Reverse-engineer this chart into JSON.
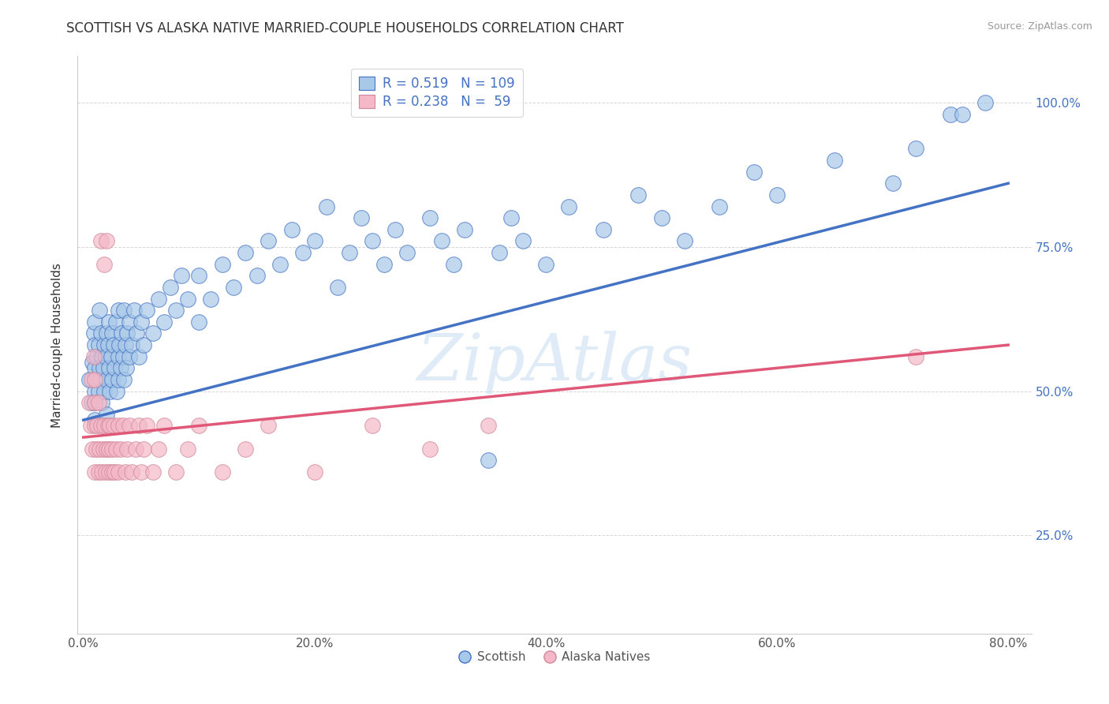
{
  "title": "SCOTTISH VS ALASKA NATIVE MARRIED-COUPLE HOUSEHOLDS CORRELATION CHART",
  "source": "Source: ZipAtlas.com",
  "ylabel": "Married-couple Households",
  "xlim": [
    -0.005,
    0.82
  ],
  "ylim": [
    0.08,
    1.08
  ],
  "xticks": [
    0.0,
    0.2,
    0.4,
    0.6,
    0.8
  ],
  "xticklabels": [
    "0.0%",
    "20.0%",
    "40.0%",
    "60.0%",
    "80.0%"
  ],
  "yticks": [
    0.25,
    0.5,
    0.75,
    1.0
  ],
  "yticklabels": [
    "25.0%",
    "50.0%",
    "75.0%",
    "100.0%"
  ],
  "scottish_color": "#a8c8e8",
  "alaska_color": "#f4b8c8",
  "scottish_line_color": "#4472c4",
  "alaska_line_color": "#e05878",
  "scottish_edge_color": "#6699cc",
  "alaska_edge_color": "#d08898",
  "watermark": "ZipAtlas",
  "legend_R_scottish": "0.519",
  "legend_N_scottish": "109",
  "legend_R_alaska": "0.238",
  "legend_N_alaska": "59",
  "scottish_scatter": [
    [
      0.005,
      0.52
    ],
    [
      0.007,
      0.48
    ],
    [
      0.008,
      0.55
    ],
    [
      0.009,
      0.6
    ],
    [
      0.01,
      0.58
    ],
    [
      0.01,
      0.5
    ],
    [
      0.01,
      0.45
    ],
    [
      0.01,
      0.62
    ],
    [
      0.01,
      0.54
    ],
    [
      0.01,
      0.48
    ],
    [
      0.011,
      0.56
    ],
    [
      0.012,
      0.52
    ],
    [
      0.013,
      0.58
    ],
    [
      0.013,
      0.5
    ],
    [
      0.014,
      0.64
    ],
    [
      0.014,
      0.54
    ],
    [
      0.015,
      0.6
    ],
    [
      0.015,
      0.52
    ],
    [
      0.016,
      0.56
    ],
    [
      0.016,
      0.48
    ],
    [
      0.017,
      0.54
    ],
    [
      0.018,
      0.58
    ],
    [
      0.018,
      0.5
    ],
    [
      0.019,
      0.56
    ],
    [
      0.02,
      0.52
    ],
    [
      0.02,
      0.6
    ],
    [
      0.02,
      0.46
    ],
    [
      0.021,
      0.58
    ],
    [
      0.022,
      0.54
    ],
    [
      0.022,
      0.62
    ],
    [
      0.023,
      0.5
    ],
    [
      0.024,
      0.56
    ],
    [
      0.025,
      0.52
    ],
    [
      0.025,
      0.6
    ],
    [
      0.026,
      0.58
    ],
    [
      0.027,
      0.54
    ],
    [
      0.028,
      0.62
    ],
    [
      0.029,
      0.5
    ],
    [
      0.03,
      0.56
    ],
    [
      0.03,
      0.52
    ],
    [
      0.03,
      0.64
    ],
    [
      0.031,
      0.58
    ],
    [
      0.032,
      0.54
    ],
    [
      0.033,
      0.6
    ],
    [
      0.034,
      0.56
    ],
    [
      0.035,
      0.52
    ],
    [
      0.035,
      0.64
    ],
    [
      0.036,
      0.58
    ],
    [
      0.037,
      0.54
    ],
    [
      0.038,
      0.6
    ],
    [
      0.04,
      0.62
    ],
    [
      0.04,
      0.56
    ],
    [
      0.042,
      0.58
    ],
    [
      0.044,
      0.64
    ],
    [
      0.046,
      0.6
    ],
    [
      0.048,
      0.56
    ],
    [
      0.05,
      0.62
    ],
    [
      0.052,
      0.58
    ],
    [
      0.055,
      0.64
    ],
    [
      0.06,
      0.6
    ],
    [
      0.065,
      0.66
    ],
    [
      0.07,
      0.62
    ],
    [
      0.075,
      0.68
    ],
    [
      0.08,
      0.64
    ],
    [
      0.085,
      0.7
    ],
    [
      0.09,
      0.66
    ],
    [
      0.1,
      0.62
    ],
    [
      0.1,
      0.7
    ],
    [
      0.11,
      0.66
    ],
    [
      0.12,
      0.72
    ],
    [
      0.13,
      0.68
    ],
    [
      0.14,
      0.74
    ],
    [
      0.15,
      0.7
    ],
    [
      0.16,
      0.76
    ],
    [
      0.17,
      0.72
    ],
    [
      0.18,
      0.78
    ],
    [
      0.19,
      0.74
    ],
    [
      0.2,
      0.76
    ],
    [
      0.21,
      0.82
    ],
    [
      0.22,
      0.68
    ],
    [
      0.23,
      0.74
    ],
    [
      0.24,
      0.8
    ],
    [
      0.25,
      0.76
    ],
    [
      0.26,
      0.72
    ],
    [
      0.27,
      0.78
    ],
    [
      0.28,
      0.74
    ],
    [
      0.3,
      0.8
    ],
    [
      0.31,
      0.76
    ],
    [
      0.32,
      0.72
    ],
    [
      0.33,
      0.78
    ],
    [
      0.35,
      0.38
    ],
    [
      0.36,
      0.74
    ],
    [
      0.37,
      0.8
    ],
    [
      0.38,
      0.76
    ],
    [
      0.4,
      0.72
    ],
    [
      0.42,
      0.82
    ],
    [
      0.45,
      0.78
    ],
    [
      0.48,
      0.84
    ],
    [
      0.5,
      0.8
    ],
    [
      0.52,
      0.76
    ],
    [
      0.55,
      0.82
    ],
    [
      0.58,
      0.88
    ],
    [
      0.6,
      0.84
    ],
    [
      0.65,
      0.9
    ],
    [
      0.7,
      0.86
    ],
    [
      0.72,
      0.92
    ],
    [
      0.75,
      0.98
    ],
    [
      0.76,
      0.98
    ],
    [
      0.78,
      1.0
    ]
  ],
  "alaska_scatter": [
    [
      0.005,
      0.48
    ],
    [
      0.006,
      0.44
    ],
    [
      0.007,
      0.52
    ],
    [
      0.008,
      0.4
    ],
    [
      0.009,
      0.56
    ],
    [
      0.01,
      0.44
    ],
    [
      0.01,
      0.36
    ],
    [
      0.01,
      0.48
    ],
    [
      0.01,
      0.52
    ],
    [
      0.011,
      0.4
    ],
    [
      0.012,
      0.44
    ],
    [
      0.013,
      0.36
    ],
    [
      0.013,
      0.48
    ],
    [
      0.014,
      0.4
    ],
    [
      0.015,
      0.44
    ],
    [
      0.015,
      0.76
    ],
    [
      0.016,
      0.36
    ],
    [
      0.017,
      0.4
    ],
    [
      0.018,
      0.44
    ],
    [
      0.018,
      0.72
    ],
    [
      0.019,
      0.36
    ],
    [
      0.02,
      0.4
    ],
    [
      0.02,
      0.76
    ],
    [
      0.021,
      0.44
    ],
    [
      0.022,
      0.36
    ],
    [
      0.022,
      0.4
    ],
    [
      0.023,
      0.44
    ],
    [
      0.025,
      0.36
    ],
    [
      0.025,
      0.4
    ],
    [
      0.026,
      0.44
    ],
    [
      0.027,
      0.36
    ],
    [
      0.028,
      0.4
    ],
    [
      0.03,
      0.44
    ],
    [
      0.03,
      0.36
    ],
    [
      0.032,
      0.4
    ],
    [
      0.034,
      0.44
    ],
    [
      0.036,
      0.36
    ],
    [
      0.038,
      0.4
    ],
    [
      0.04,
      0.44
    ],
    [
      0.042,
      0.36
    ],
    [
      0.045,
      0.4
    ],
    [
      0.048,
      0.44
    ],
    [
      0.05,
      0.36
    ],
    [
      0.052,
      0.4
    ],
    [
      0.055,
      0.44
    ],
    [
      0.06,
      0.36
    ],
    [
      0.065,
      0.4
    ],
    [
      0.07,
      0.44
    ],
    [
      0.08,
      0.36
    ],
    [
      0.09,
      0.4
    ],
    [
      0.1,
      0.44
    ],
    [
      0.12,
      0.36
    ],
    [
      0.14,
      0.4
    ],
    [
      0.16,
      0.44
    ],
    [
      0.2,
      0.36
    ],
    [
      0.25,
      0.44
    ],
    [
      0.3,
      0.4
    ],
    [
      0.35,
      0.44
    ],
    [
      0.72,
      0.56
    ]
  ]
}
